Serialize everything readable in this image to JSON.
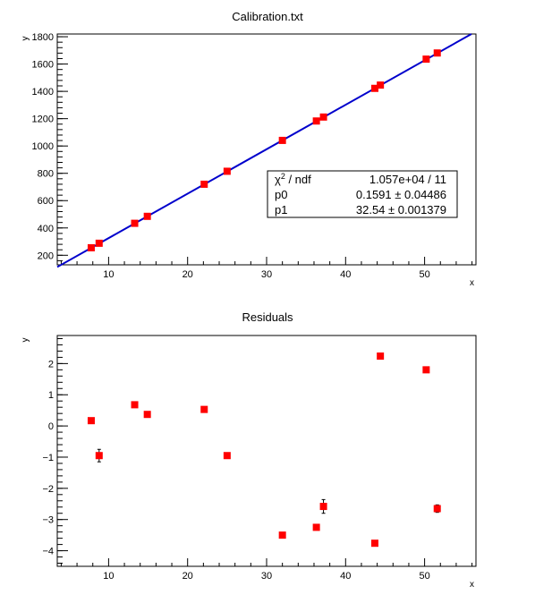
{
  "chart_data": [
    {
      "type": "scatter",
      "title": "Calibration.txt",
      "xlabel": "x",
      "ylabel": "y",
      "xlim": [
        3.5,
        56.5
      ],
      "ylim": [
        130,
        1820
      ],
      "xticks": [
        10,
        20,
        30,
        40,
        50
      ],
      "yticks": [
        200,
        400,
        600,
        800,
        1000,
        1200,
        1400,
        1600,
        1800
      ],
      "grid": false,
      "series": [
        {
          "x": [
            7.8,
            8.8,
            13.3,
            14.9,
            22.1,
            25.0,
            32.0,
            36.3,
            37.2,
            43.7,
            44.4,
            50.2,
            51.6
          ],
          "y": [
            255,
            288,
            434,
            485,
            720,
            815,
            1041,
            1183,
            1212,
            1422,
            1446,
            1636,
            1681
          ],
          "color": "#ff0000"
        }
      ],
      "fit": {
        "intercept": 0.1591,
        "slope": 32.54,
        "color": "#0000cc"
      },
      "stats_box": {
        "rows": [
          {
            "label_prefix": "χ",
            "label_sup": "2",
            "label_suffix": " / ndf",
            "value": "1.057e+04 / 11"
          },
          {
            "label_prefix": "p0",
            "label_sup": "",
            "label_suffix": "",
            "value": "0.1591 ± 0.04486"
          },
          {
            "label_prefix": "p1",
            "label_sup": "",
            "label_suffix": "",
            "value": "32.54 ± 0.001379"
          }
        ]
      }
    },
    {
      "type": "scatter",
      "title": "Residuals",
      "xlabel": "x",
      "ylabel": "y",
      "xlim": [
        3.5,
        56.5
      ],
      "ylim": [
        -4.5,
        2.9
      ],
      "xticks": [
        10,
        20,
        30,
        40,
        50
      ],
      "yticks": [
        -4,
        -3,
        -2,
        -1,
        0,
        1,
        2
      ],
      "grid": false,
      "series": [
        {
          "x": [
            7.8,
            8.8,
            13.3,
            14.9,
            22.1,
            25.0,
            32.0,
            36.3,
            37.2,
            43.7,
            44.4,
            50.2,
            51.6
          ],
          "y": [
            0.17,
            -0.95,
            0.68,
            0.37,
            0.53,
            -0.95,
            -3.5,
            -3.25,
            -2.58,
            -3.76,
            2.24,
            1.8,
            -2.65
          ],
          "yerr": [
            0,
            0.2,
            0,
            0,
            0,
            0,
            0,
            0,
            0.22,
            0,
            0,
            0,
            0.12
          ],
          "color": "#ff0000"
        }
      ]
    }
  ]
}
